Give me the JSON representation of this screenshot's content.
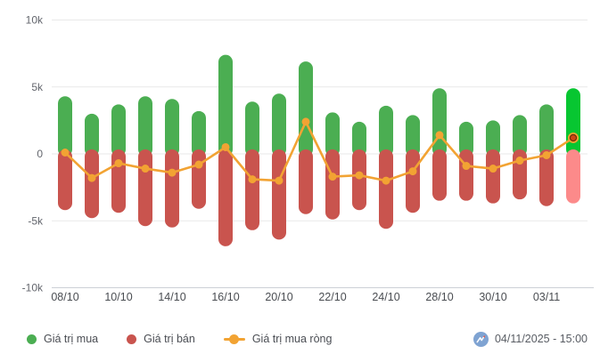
{
  "chart_data": {
    "type": "bar",
    "subtype": "grouped bars above/below zero with net line overlay",
    "title": "",
    "xlabel": "",
    "ylabel": "",
    "unit_suffix": "k",
    "ylim": [
      -10,
      10
    ],
    "grid": true,
    "y_ticks": [
      {
        "label": "10k",
        "value": 10
      },
      {
        "label": "5k",
        "value": 5
      },
      {
        "label": "0",
        "value": 0
      },
      {
        "label": "-5k",
        "value": -5
      },
      {
        "label": "-10k",
        "value": -10
      }
    ],
    "categories": [
      "08/10",
      "",
      "10/10",
      "",
      "14/10",
      "",
      "16/10",
      "",
      "20/10",
      "",
      "22/10",
      "",
      "24/10",
      "",
      "28/10",
      "",
      "30/10",
      "",
      "03/11",
      ""
    ],
    "series": [
      {
        "name": "Giá trị mua",
        "type": "bar",
        "color": "#4bae52",
        "highlight_last_color": "#07c631",
        "values": [
          4.3,
          3.0,
          3.7,
          4.3,
          4.1,
          3.2,
          7.4,
          3.9,
          4.5,
          6.9,
          3.1,
          2.4,
          3.6,
          2.9,
          4.9,
          2.4,
          2.5,
          2.9,
          3.7,
          4.9
        ]
      },
      {
        "name": "Giá trị bán",
        "type": "bar",
        "color": "#c9544e",
        "highlight_last_color": "#fc8a8a",
        "values": [
          -4.2,
          -4.8,
          -4.4,
          -5.4,
          -5.5,
          -4.1,
          -6.9,
          -5.7,
          -6.4,
          -4.5,
          -4.9,
          -4.2,
          -5.6,
          -4.4,
          -3.5,
          -3.5,
          -3.7,
          -3.4,
          -3.9,
          -3.7
        ]
      },
      {
        "name": "Giá trị mua ròng",
        "type": "line",
        "color": "#f2a333",
        "highlight_dot_fill": "#cc4613",
        "highlight_dot_stroke": "#6e2f06",
        "values": [
          0.1,
          -1.8,
          -0.7,
          -1.1,
          -1.4,
          -0.8,
          0.5,
          -1.9,
          -2.0,
          2.4,
          -1.7,
          -1.6,
          -2.0,
          -1.3,
          1.4,
          -0.9,
          -1.1,
          -0.5,
          -0.1,
          1.2
        ]
      }
    ],
    "legend_position": "bottom-left",
    "colors": {
      "grid": "#e9e9e9",
      "axis_line": "#ccd0d6",
      "y_tick_text": "#63666d",
      "x_tick_text": "#4a4d52"
    }
  },
  "legend": {
    "items": [
      {
        "label": "Giá trị mua",
        "marker": "dot",
        "color": "#4bae52"
      },
      {
        "label": "Giá trị bán",
        "marker": "dot",
        "color": "#c9544e"
      },
      {
        "label": "Giá trị mua ròng",
        "marker": "line-dot",
        "color": "#f2a333"
      }
    ]
  },
  "footer": {
    "logo_icon": "vietstock-logo-icon",
    "timestamp": "04/11/2025 - 15:00"
  }
}
